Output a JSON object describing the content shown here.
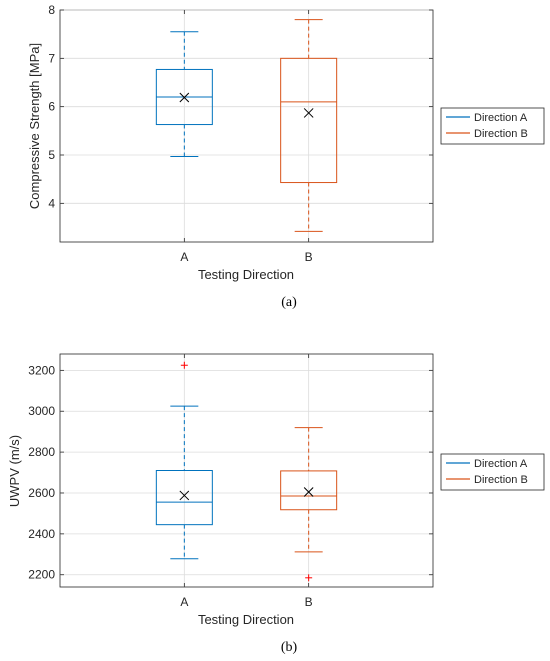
{
  "colors": {
    "direction_a": "#0072BD",
    "direction_b": "#D95319",
    "outlier": "#FF0000",
    "grid": "#DCDCDC",
    "axis": "#262626"
  },
  "chart_data": [
    {
      "type": "box",
      "panel_label": "(a)",
      "ylabel": "Compressive Strength [MPa]",
      "xlabel": "Testing Direction",
      "categories": [
        "A",
        "B"
      ],
      "ylim": [
        3.2,
        8
      ],
      "yticks": [
        4,
        5,
        6,
        7,
        8
      ],
      "grid": true,
      "legend": {
        "placement": "outside-right",
        "entries": [
          "Direction A",
          "Direction B"
        ]
      },
      "series": [
        {
          "name": "Direction A",
          "whisker_low": 4.97,
          "q1": 5.63,
          "median": 6.2,
          "q3": 6.77,
          "whisker_high": 7.55,
          "mean": 6.19,
          "outliers": []
        },
        {
          "name": "Direction B",
          "whisker_low": 3.42,
          "q1": 4.43,
          "median": 6.1,
          "q3": 7.0,
          "whisker_high": 7.8,
          "mean": 5.87,
          "outliers": []
        }
      ]
    },
    {
      "type": "box",
      "panel_label": "(b)",
      "ylabel": "UWPV (m/s)",
      "xlabel": "Testing Direction",
      "categories": [
        "A",
        "B"
      ],
      "ylim": [
        2140,
        3280
      ],
      "yticks": [
        2200,
        2400,
        2600,
        2800,
        3000,
        3200
      ],
      "grid": true,
      "legend": {
        "placement": "outside-right",
        "entries": [
          "Direction A",
          "Direction B"
        ]
      },
      "series": [
        {
          "name": "Direction A",
          "whisker_low": 2278,
          "q1": 2445,
          "median": 2555,
          "q3": 2710,
          "whisker_high": 3025,
          "mean": 2588,
          "outliers": [
            3225
          ]
        },
        {
          "name": "Direction B",
          "whisker_low": 2312,
          "q1": 2518,
          "median": 2585,
          "q3": 2708,
          "whisker_high": 2920,
          "mean": 2605,
          "outliers": [
            2185
          ]
        }
      ]
    }
  ]
}
